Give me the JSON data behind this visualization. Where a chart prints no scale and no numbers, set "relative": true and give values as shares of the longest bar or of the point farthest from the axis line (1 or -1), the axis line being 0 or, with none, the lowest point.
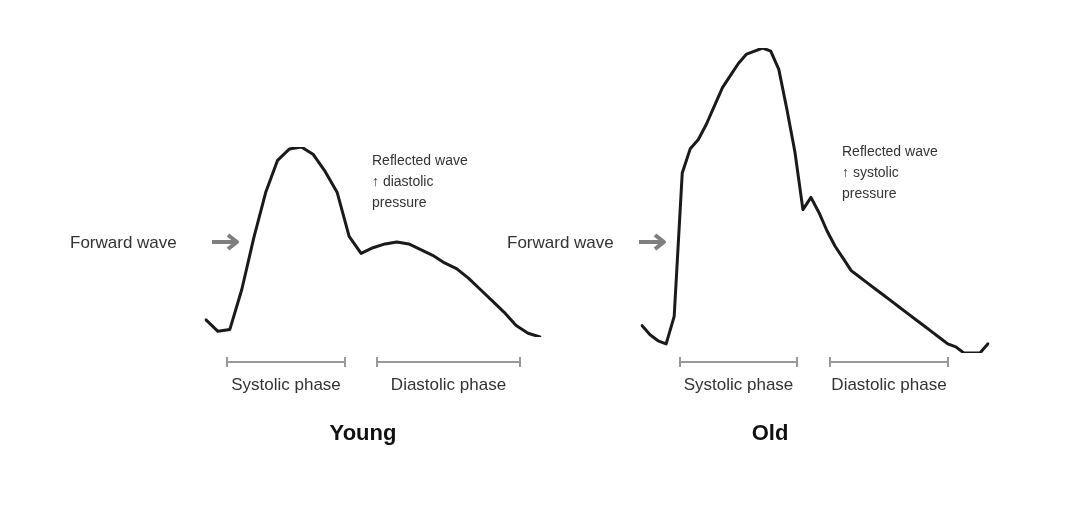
{
  "chart_data": [
    {
      "type": "line",
      "title": "Young",
      "relative": true,
      "marker": "none",
      "categories": [
        null,
        null,
        null,
        null,
        null,
        null,
        null,
        null,
        null,
        null,
        null,
        null,
        null,
        null,
        null,
        null,
        null,
        null,
        null,
        null,
        null,
        null,
        null,
        null,
        null,
        null,
        null,
        null,
        null
      ],
      "series": [
        {
          "color": "#1a1a1a",
          "values": [
            0.09,
            0.03,
            0.04,
            0.25,
            0.52,
            0.76,
            0.93,
            0.99,
            1.0,
            0.96,
            0.87,
            0.76,
            0.53,
            0.44,
            0.47,
            0.49,
            0.5,
            0.49,
            0.46,
            0.43,
            0.39,
            0.36,
            0.31,
            0.25,
            0.19,
            0.13,
            0.06,
            0.02,
            0
          ]
        }
      ],
      "annotations": [
        "Forward wave",
        "Reflected wave\n↑ diastolic\npressure",
        "Systolic phase",
        "Diastolic phase"
      ]
    },
    {
      "type": "line",
      "title": "Old",
      "relative": true,
      "marker": "none",
      "categories": [
        null,
        null,
        null,
        null,
        null,
        null,
        null,
        null,
        null,
        null,
        null,
        null,
        null,
        null,
        null,
        null,
        null,
        null,
        null,
        null,
        null,
        null,
        null,
        null,
        null,
        null,
        null,
        null,
        null,
        null,
        null,
        null,
        null,
        null,
        null,
        null,
        null,
        null,
        null,
        null,
        null,
        null,
        null,
        null
      ],
      "series": [
        {
          "color": "#1a1a1a",
          "values": [
            0.09,
            0.06,
            0.04,
            0.03,
            0.12,
            0.59,
            0.67,
            0.7,
            0.75,
            0.81,
            0.87,
            0.91,
            0.95,
            0.98,
            0.99,
            1.0,
            0.99,
            0.93,
            0.8,
            0.66,
            0.47,
            0.51,
            0.46,
            0.4,
            0.35,
            0.31,
            0.27,
            0.25,
            0.23,
            0.21,
            0.19,
            0.17,
            0.15,
            0.13,
            0.11,
            0.09,
            0.07,
            0.05,
            0.03,
            0.02,
            0,
            0,
            0,
            0.03
          ]
        }
      ],
      "annotations": [
        "Forward wave",
        "Reflected wave\n↑ systolic\npressure",
        "Systolic phase",
        "Diastolic phase"
      ]
    }
  ]
}
